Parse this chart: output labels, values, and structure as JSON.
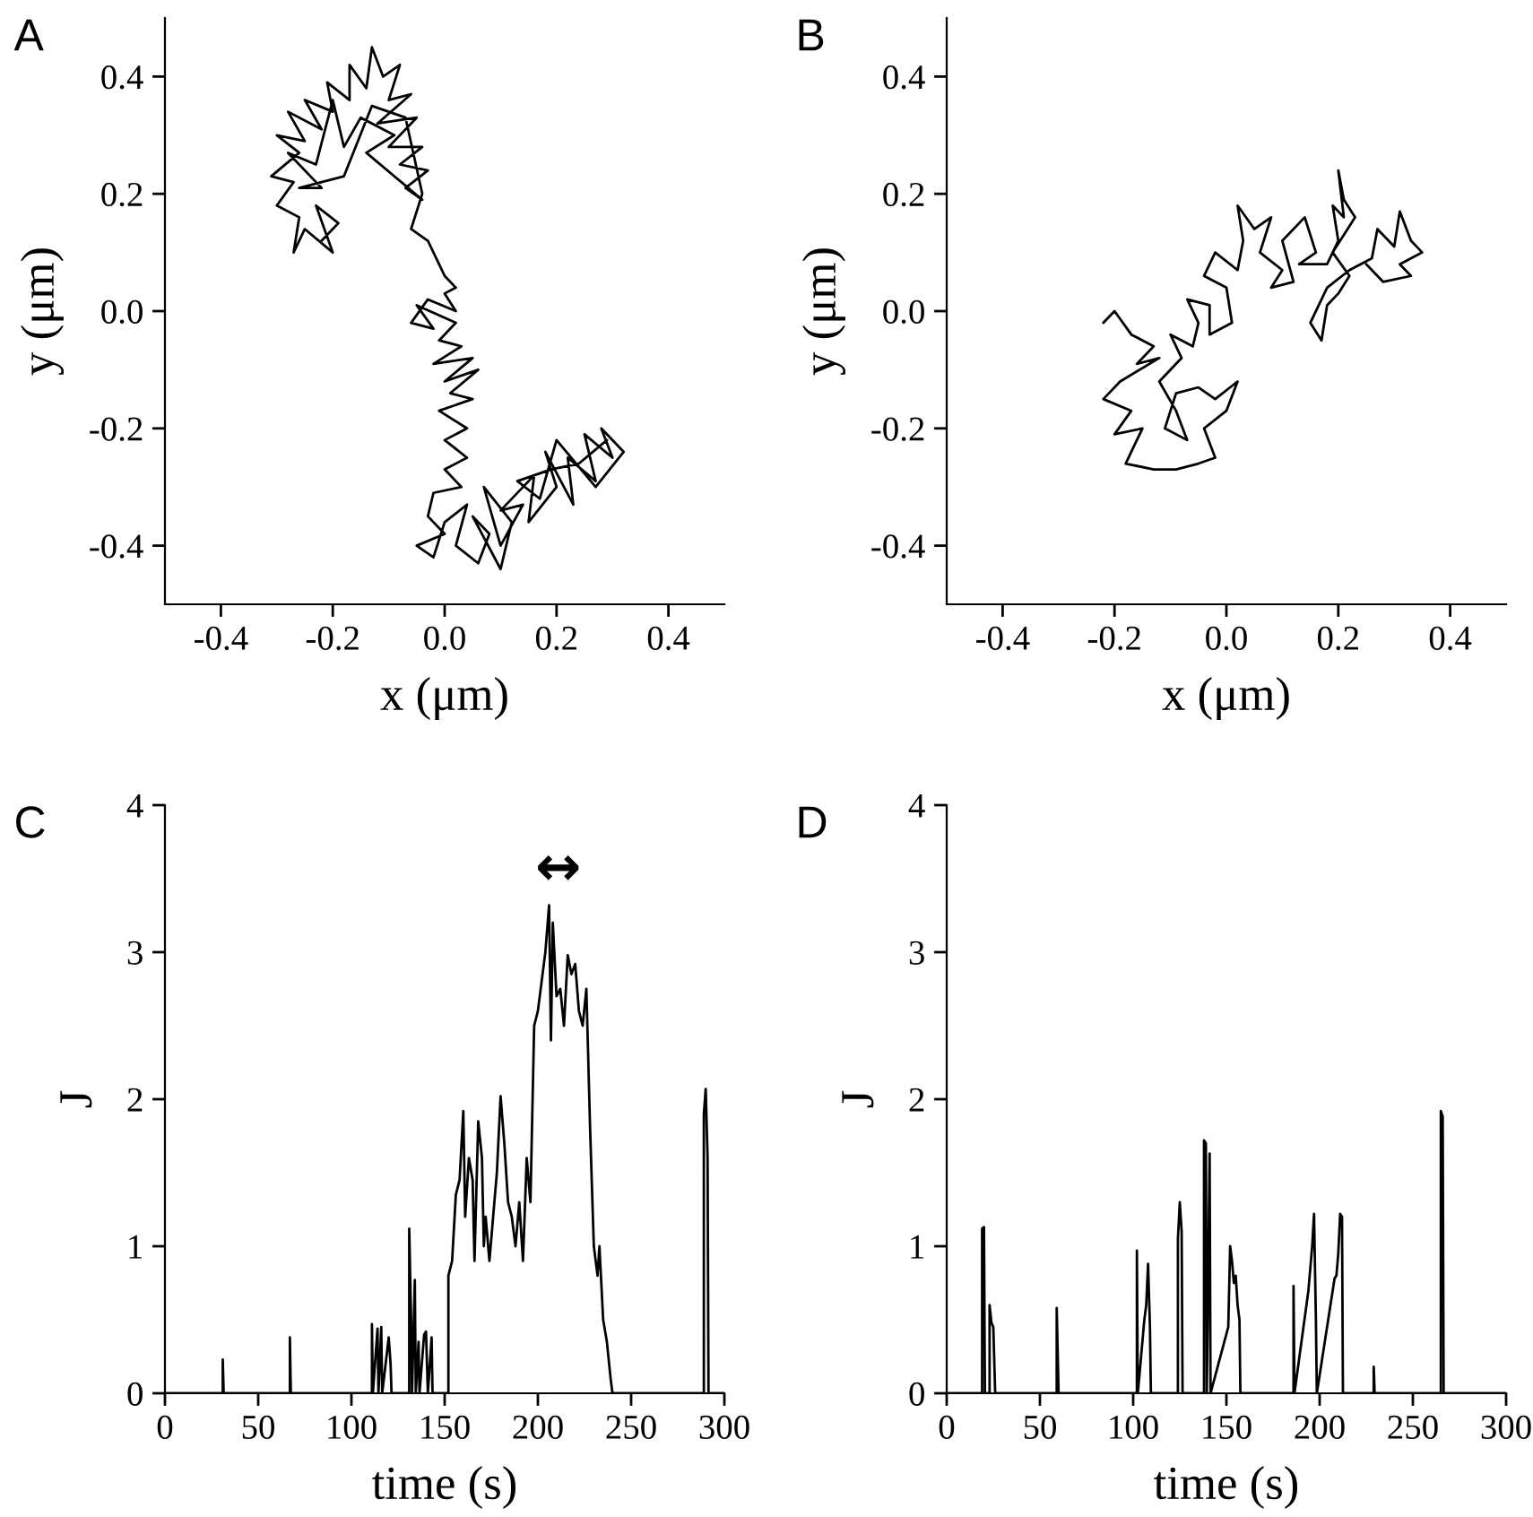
{
  "chart_data": [
    {
      "type": "line",
      "title": "A",
      "xlabel": "x (μm)",
      "ylabel": "y (μm)",
      "xlim": [
        -0.5,
        0.5
      ],
      "ylim": [
        -0.5,
        0.5
      ],
      "xticks": [
        -0.4,
        -0.2,
        {
          "value": 0,
          "label": "0.0"
        },
        0.2,
        0.4
      ],
      "yticks": [
        -0.4,
        -0.2,
        {
          "value": 0,
          "label": "0.0"
        },
        0.2,
        0.4
      ],
      "grid": false,
      "legend": false,
      "marker": "none",
      "line_style": "solid",
      "series": [
        {
          "color": "#000000",
          "x": [
            -0.22,
            -0.19,
            -0.23,
            -0.2,
            -0.25,
            -0.27,
            -0.26,
            -0.3,
            -0.27,
            -0.31,
            -0.26,
            -0.3,
            -0.25,
            -0.28,
            -0.22,
            -0.25,
            -0.2,
            -0.21,
            -0.17,
            -0.17,
            -0.14,
            -0.13,
            -0.11,
            -0.08,
            -0.1,
            -0.06,
            -0.12,
            -0.05,
            -0.1,
            -0.04,
            -0.08,
            -0.03,
            -0.07,
            -0.04,
            -0.14,
            -0.09,
            -0.15,
            -0.18,
            -0.2,
            -0.23,
            -0.28,
            -0.22,
            -0.26,
            -0.18,
            -0.13,
            -0.07,
            -0.04,
            -0.06,
            -0.03,
            -0.01,
            0.0,
            0.02,
            0.0,
            0.02,
            -0.03,
            -0.06,
            -0.02,
            -0.05,
            0.02,
            -0.01,
            0.03,
            -0.02,
            0.05,
            0.0,
            0.06,
            0.01,
            0.05,
            -0.01,
            0.04,
            0.0,
            0.04,
            0.0,
            0.03,
            -0.02,
            -0.03,
            0.0,
            -0.05,
            -0.02,
            0.0,
            0.04,
            0.02,
            0.06,
            0.08,
            0.05,
            0.1,
            0.12,
            0.07,
            0.1,
            0.14,
            0.1,
            0.16,
            0.15,
            0.2,
            0.18,
            0.23,
            0.22,
            0.27,
            0.25,
            0.3,
            0.28,
            0.32,
            0.27,
            0.2,
            0.17,
            0.13,
            0.19,
            0.24,
            0.29
          ],
          "values": [
            0.12,
            0.15,
            0.18,
            0.1,
            0.14,
            0.1,
            0.16,
            0.18,
            0.22,
            0.23,
            0.27,
            0.3,
            0.29,
            0.34,
            0.31,
            0.36,
            0.34,
            0.39,
            0.36,
            0.42,
            0.38,
            0.45,
            0.4,
            0.42,
            0.36,
            0.37,
            0.32,
            0.33,
            0.28,
            0.28,
            0.25,
            0.24,
            0.21,
            0.19,
            0.27,
            0.3,
            0.33,
            0.28,
            0.36,
            0.25,
            0.27,
            0.21,
            0.21,
            0.23,
            0.35,
            0.33,
            0.2,
            0.14,
            0.12,
            0.08,
            0.06,
            0.04,
            0.03,
            0.0,
            0.02,
            -0.02,
            -0.03,
            0.01,
            -0.02,
            -0.05,
            -0.06,
            -0.09,
            -0.08,
            -0.12,
            -0.1,
            -0.14,
            -0.15,
            -0.17,
            -0.2,
            -0.22,
            -0.25,
            -0.27,
            -0.3,
            -0.31,
            -0.35,
            -0.38,
            -0.4,
            -0.42,
            -0.36,
            -0.33,
            -0.4,
            -0.43,
            -0.38,
            -0.35,
            -0.44,
            -0.36,
            -0.3,
            -0.4,
            -0.33,
            -0.34,
            -0.28,
            -0.36,
            -0.3,
            -0.24,
            -0.33,
            -0.25,
            -0.29,
            -0.21,
            -0.25,
            -0.2,
            -0.24,
            -0.3,
            -0.22,
            -0.32,
            -0.29,
            -0.27,
            -0.26,
            -0.22
          ]
        }
      ]
    },
    {
      "type": "line",
      "title": "B",
      "xlabel": "x (μm)",
      "ylabel": "y (μm)",
      "xlim": [
        -0.5,
        0.5
      ],
      "ylim": [
        -0.5,
        0.5
      ],
      "xticks": [
        -0.4,
        -0.2,
        {
          "value": 0,
          "label": "0.0"
        },
        0.2,
        0.4
      ],
      "yticks": [
        -0.4,
        -0.2,
        {
          "value": 0,
          "label": "0.0"
        },
        0.2,
        0.4
      ],
      "grid": false,
      "legend": false,
      "marker": "none",
      "line_style": "solid",
      "series": [
        {
          "color": "#000000",
          "x": [
            -0.22,
            -0.2,
            -0.17,
            -0.13,
            -0.16,
            -0.12,
            -0.19,
            -0.22,
            -0.17,
            -0.2,
            -0.15,
            -0.18,
            -0.13,
            -0.09,
            -0.05,
            -0.02,
            -0.04,
            0.0,
            0.02,
            -0.02,
            -0.05,
            -0.09,
            -0.11,
            -0.07,
            -0.09,
            -0.12,
            -0.08,
            -0.1,
            -0.06,
            -0.05,
            -0.07,
            -0.03,
            -0.03,
            0.01,
            0.0,
            -0.04,
            -0.02,
            0.02,
            0.03,
            0.02,
            0.05,
            0.08,
            0.06,
            0.1,
            0.08,
            0.12,
            0.1,
            0.14,
            0.16,
            0.13,
            0.18,
            0.2,
            0.19,
            0.21,
            0.2,
            0.21,
            0.23,
            0.19,
            0.22,
            0.2,
            0.18,
            0.17,
            0.15,
            0.18,
            0.22,
            0.26,
            0.27,
            0.3,
            0.31,
            0.33,
            0.35,
            0.31,
            0.33,
            0.28,
            0.25
          ],
          "values": [
            -0.02,
            0.0,
            -0.04,
            -0.06,
            -0.09,
            -0.08,
            -0.12,
            -0.15,
            -0.17,
            -0.21,
            -0.2,
            -0.26,
            -0.27,
            -0.27,
            -0.26,
            -0.25,
            -0.2,
            -0.17,
            -0.12,
            -0.15,
            -0.13,
            -0.14,
            -0.2,
            -0.22,
            -0.17,
            -0.12,
            -0.08,
            -0.04,
            -0.06,
            -0.02,
            0.02,
            0.01,
            -0.04,
            -0.02,
            0.04,
            0.06,
            0.1,
            0.07,
            0.12,
            0.18,
            0.14,
            0.16,
            0.1,
            0.07,
            0.04,
            0.05,
            0.12,
            0.16,
            0.1,
            0.08,
            0.08,
            0.12,
            0.18,
            0.16,
            0.24,
            0.19,
            0.16,
            0.1,
            0.06,
            0.03,
            0.01,
            -0.05,
            -0.02,
            0.04,
            0.07,
            0.09,
            0.14,
            0.11,
            0.17,
            0.12,
            0.1,
            0.08,
            0.06,
            0.05,
            0.08
          ]
        }
      ]
    },
    {
      "type": "line",
      "title": "C",
      "xlabel": "time (s)",
      "ylabel": "J",
      "xlim": [
        0,
        300
      ],
      "ylim": [
        0,
        4
      ],
      "xticks": [
        0,
        50,
        100,
        150,
        200,
        250,
        300
      ],
      "yticks": [
        0,
        1,
        2,
        3,
        4
      ],
      "grid": false,
      "legend": false,
      "marker": "none",
      "line_style": "solid",
      "annotations": [
        "↔"
      ],
      "series": [
        {
          "color": "#000000",
          "x": [
            0,
            31,
            31,
            31.5,
            67,
            67,
            67.5,
            111,
            111,
            111.5,
            114,
            114.5,
            116,
            116.5,
            120,
            121,
            121.5,
            131,
            131,
            132,
            132.5,
            134,
            134.5,
            136,
            136.5,
            139,
            140,
            141,
            143,
            143.5,
            152,
            152,
            154,
            156,
            158,
            160,
            161,
            163,
            165,
            166,
            168,
            170,
            171,
            172,
            174,
            176,
            178,
            180,
            182,
            184,
            186,
            188,
            190,
            192,
            194,
            196,
            198,
            200,
            202,
            204,
            206,
            207,
            208,
            210,
            212,
            214,
            216,
            218,
            220,
            222,
            224,
            226,
            228,
            230,
            232,
            233,
            235,
            237,
            239,
            240,
            289,
            289,
            290,
            291,
            291.5,
            300
          ],
          "values": [
            0,
            0,
            0.23,
            0,
            0,
            0.38,
            0,
            0,
            0.47,
            0,
            0.44,
            0,
            0.45,
            0,
            0.38,
            0.2,
            0,
            0,
            1.12,
            0.5,
            0,
            0.77,
            0,
            0.35,
            0,
            0.4,
            0.42,
            0,
            0.38,
            0,
            0,
            0.8,
            0.9,
            1.35,
            1.45,
            1.92,
            1.2,
            1.6,
            1.45,
            0.9,
            1.85,
            1.6,
            1.0,
            1.2,
            0.9,
            1.2,
            1.5,
            2.02,
            1.7,
            1.3,
            1.2,
            1.0,
            1.3,
            0.9,
            1.6,
            1.3,
            2.5,
            2.6,
            2.8,
            3.0,
            3.32,
            2.4,
            3.2,
            2.7,
            2.75,
            2.5,
            2.98,
            2.85,
            2.92,
            2.6,
            2.5,
            2.75,
            1.8,
            1.0,
            0.8,
            1.0,
            0.5,
            0.35,
            0.1,
            0,
            0,
            1.9,
            2.07,
            1.6,
            0,
            0
          ]
        }
      ]
    },
    {
      "type": "line",
      "title": "D",
      "xlabel": "time (s)",
      "ylabel": "J",
      "xlim": [
        0,
        300
      ],
      "ylim": [
        0,
        4
      ],
      "xticks": [
        0,
        50,
        100,
        150,
        200,
        250,
        300
      ],
      "yticks": [
        0,
        1,
        2,
        3,
        4
      ],
      "grid": false,
      "legend": false,
      "marker": "none",
      "line_style": "solid",
      "series": [
        {
          "color": "#000000",
          "x": [
            0,
            19,
            19,
            20,
            20.5,
            23,
            23,
            24,
            25,
            26,
            59,
            59,
            59.5,
            60,
            102,
            102,
            102.5,
            106,
            107,
            108,
            109,
            109.5,
            124,
            124,
            125,
            126,
            126.5,
            138,
            138,
            139,
            139.5,
            141,
            141.5,
            151,
            152,
            153,
            154,
            155,
            156,
            157,
            157.5,
            186,
            186,
            186.5,
            194,
            196,
            197,
            198,
            198.5,
            208,
            209,
            210,
            211,
            212,
            212.5,
            229,
            229,
            229.5,
            265,
            265,
            266,
            266.5,
            300
          ],
          "values": [
            0,
            0,
            1.12,
            1.13,
            0,
            0,
            0.6,
            0.48,
            0.45,
            0,
            0,
            0.58,
            0.3,
            0,
            0,
            0.97,
            0,
            0.5,
            0.6,
            0.88,
            0.45,
            0,
            0,
            1.05,
            1.3,
            1.1,
            0,
            0,
            1.72,
            1.7,
            0,
            1.63,
            0,
            0.45,
            1.0,
            0.9,
            0.75,
            0.8,
            0.6,
            0.5,
            0,
            0,
            0.73,
            0,
            0.7,
            1.0,
            1.22,
            0.5,
            0,
            0.78,
            0.8,
            0.95,
            1.22,
            1.2,
            0,
            0,
            0.18,
            0,
            0,
            1.92,
            1.88,
            0,
            0
          ]
        }
      ]
    }
  ]
}
